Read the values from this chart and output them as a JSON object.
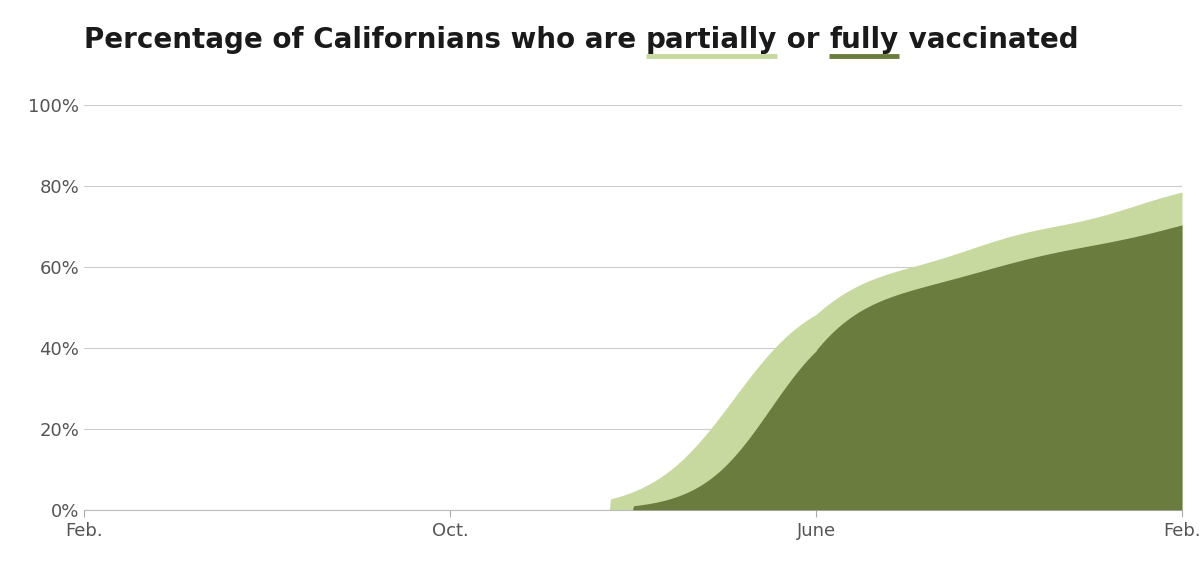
{
  "title_parts": [
    "Percentage of Californians who are ",
    "partially",
    " or ",
    "fully",
    " vaccinated"
  ],
  "partially_color": "#c8d9a0",
  "fully_color": "#6b7c3f",
  "title_underline_partially": "#c8d9a0",
  "title_underline_fully": "#6b7c3f",
  "background_color": "#ffffff",
  "grid_color": "#cccccc",
  "ylim": [
    0,
    100
  ],
  "yticks": [
    0,
    20,
    40,
    60,
    80,
    100
  ],
  "ytick_labels": [
    "0%",
    "20%",
    "40%",
    "60%",
    "80%",
    "100%"
  ],
  "xtick_labels": [
    "Feb.",
    "Oct.",
    "June",
    "Feb."
  ],
  "xtick_positions": [
    0,
    8,
    16,
    24
  ],
  "x_start": 0,
  "x_end": 24,
  "partially_final": 78.2,
  "fully_final": 70.5,
  "title_fontsize": 20,
  "tick_fontsize": 13
}
